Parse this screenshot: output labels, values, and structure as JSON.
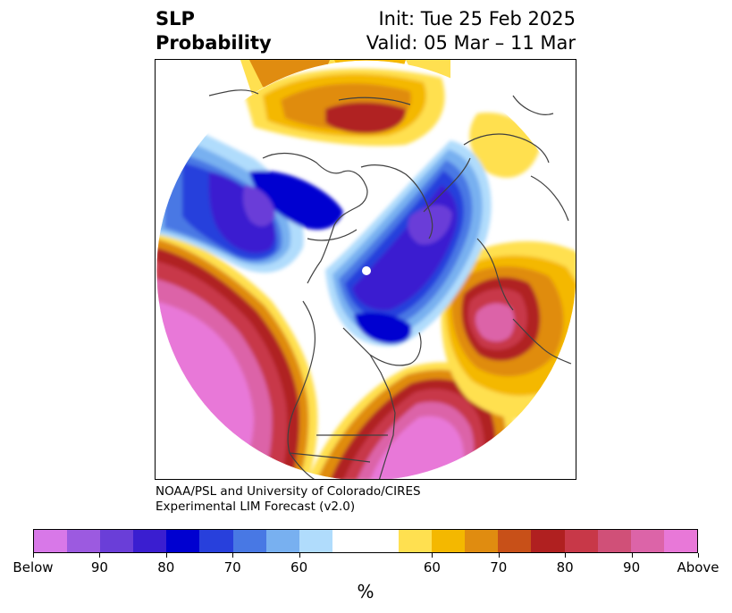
{
  "title": {
    "left_line1": "SLP",
    "left_line2": "Probability",
    "right_line1": "Init: Tue 25 Feb 2025",
    "right_line2": "Valid: 05 Mar – 11 Mar"
  },
  "credit": {
    "line1": "NOAA/PSL and University of Colorado/CIRES",
    "line2": "Experimental LIM Forecast (v2.0)"
  },
  "colorbar": {
    "unit": "%",
    "colors": [
      "#d878e8",
      "#9c5ae0",
      "#6a3ed8",
      "#3a1ed0",
      "#0000d0",
      "#2840dc",
      "#4878e4",
      "#78b0f0",
      "#b0dcfc",
      "#ffffff",
      "#ffffff",
      "#ffe050",
      "#f4b800",
      "#e08c10",
      "#c85018",
      "#b02020",
      "#c83848",
      "#d05078",
      "#dc64a8",
      "#e878d8"
    ],
    "tick_labels": [
      "Below",
      "90",
      "80",
      "70",
      "60",
      "60",
      "70",
      "80",
      "90",
      "Above"
    ]
  },
  "map": {
    "description_colors": {
      "below_strong": "#3a1ed0",
      "below_mid": "#4878e4",
      "below_weak": "#b0dcfc",
      "above_weak": "#ffe050",
      "above_mid": "#e08c10",
      "above_strong": "#b02020",
      "above_max": "#e878d8"
    }
  }
}
